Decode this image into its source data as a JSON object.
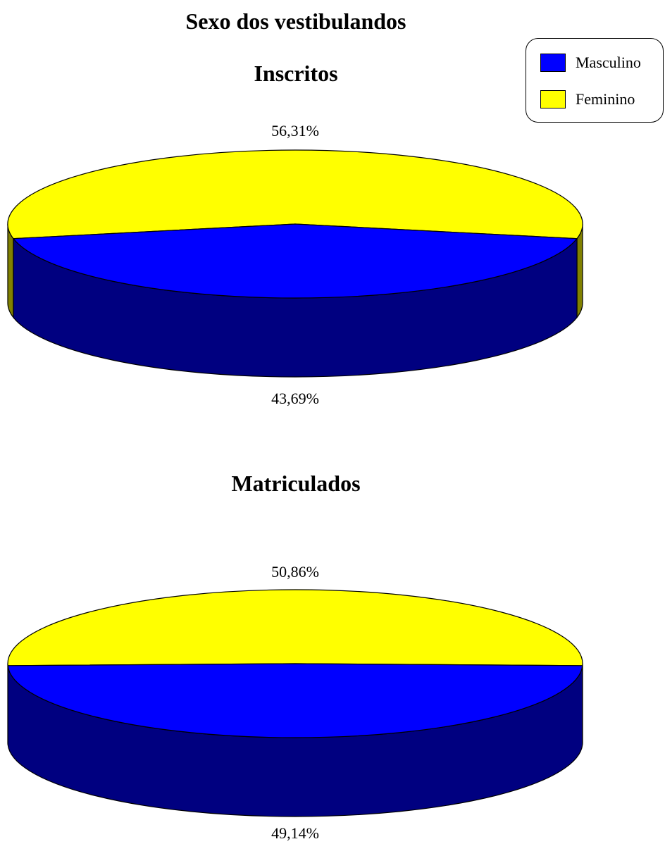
{
  "title": "Sexo dos vestibulandos",
  "legend": {
    "items": [
      {
        "label": "Masculino",
        "color": "#0000FF"
      },
      {
        "label": "Feminino",
        "color": "#FFFF00"
      }
    ]
  },
  "colors": {
    "masculino_top": "#0000FF",
    "masculino_side": "#000080",
    "feminino_top": "#FFFF00",
    "feminino_side": "#808000"
  },
  "chart_data": [
    {
      "type": "pie",
      "title": "Inscritos",
      "categories": [
        "Masculino",
        "Feminino"
      ],
      "values": [
        43.69,
        56.31
      ],
      "data_labels": [
        "43,69%",
        "56,31%"
      ]
    },
    {
      "type": "pie",
      "title": "Matriculados",
      "categories": [
        "Masculino",
        "Feminino"
      ],
      "values": [
        49.14,
        50.86
      ],
      "data_labels": [
        "49,14%",
        "50,86%"
      ]
    }
  ]
}
